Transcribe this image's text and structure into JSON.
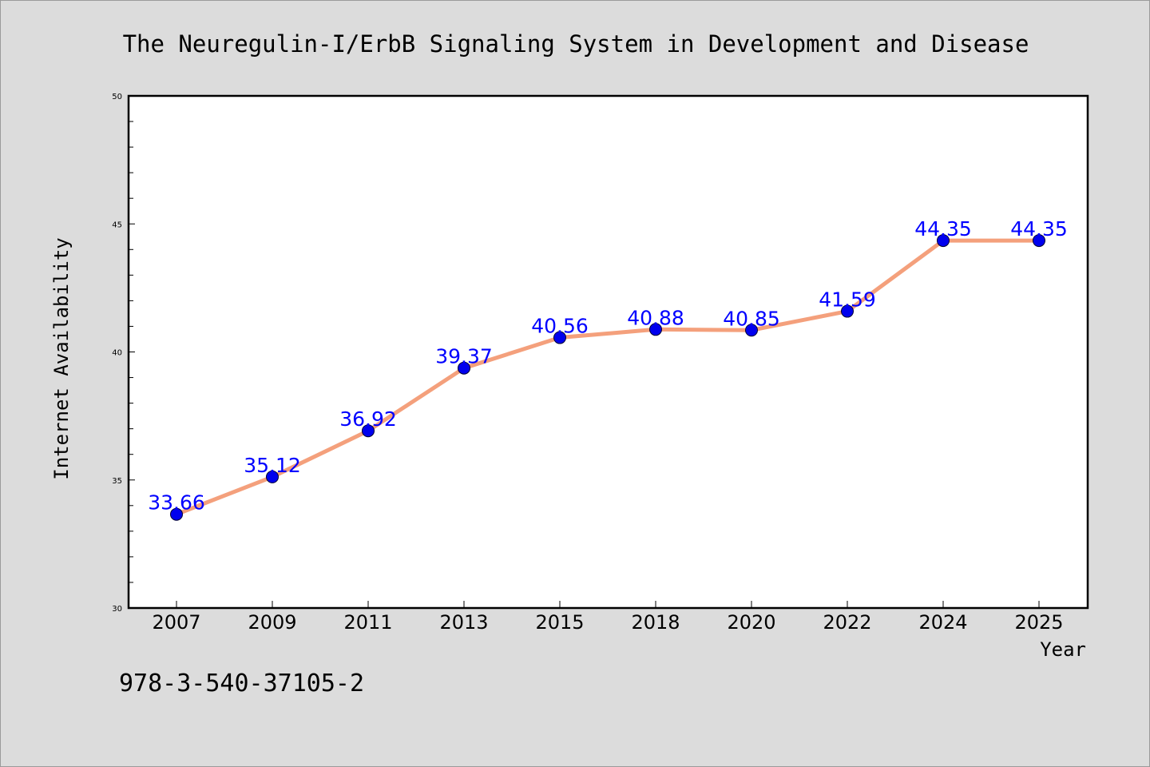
{
  "chart_data": {
    "type": "line",
    "title": "The Neuregulin-I/ErbB Signaling System in Development and Disease",
    "xlabel": "Year",
    "ylabel": "Internet Availability",
    "categories": [
      "2007",
      "2009",
      "2011",
      "2013",
      "2015",
      "2018",
      "2020",
      "2022",
      "2024",
      "2025"
    ],
    "series": [
      {
        "values": [
          33.66,
          35.12,
          36.92,
          39.37,
          40.56,
          40.88,
          40.85,
          41.59,
          44.35,
          44.35
        ],
        "labels": [
          "33.66",
          "35.12",
          "36.92",
          "39.37",
          "40.56",
          "40.88",
          "40.85",
          "41.59",
          "44.35",
          "44.35"
        ]
      }
    ],
    "ylim": [
      30,
      50
    ],
    "yticks": [
      "30",
      "35",
      "40",
      "45",
      "50"
    ],
    "grid": false,
    "line_color": "#f4a07c",
    "marker_color": "#0000ee",
    "label_color": "#0000ff",
    "background_color": "#dcdcdc",
    "plot_background_color": "#ffffff"
  },
  "footer": {
    "isbn": "978-3-540-37105-2"
  }
}
